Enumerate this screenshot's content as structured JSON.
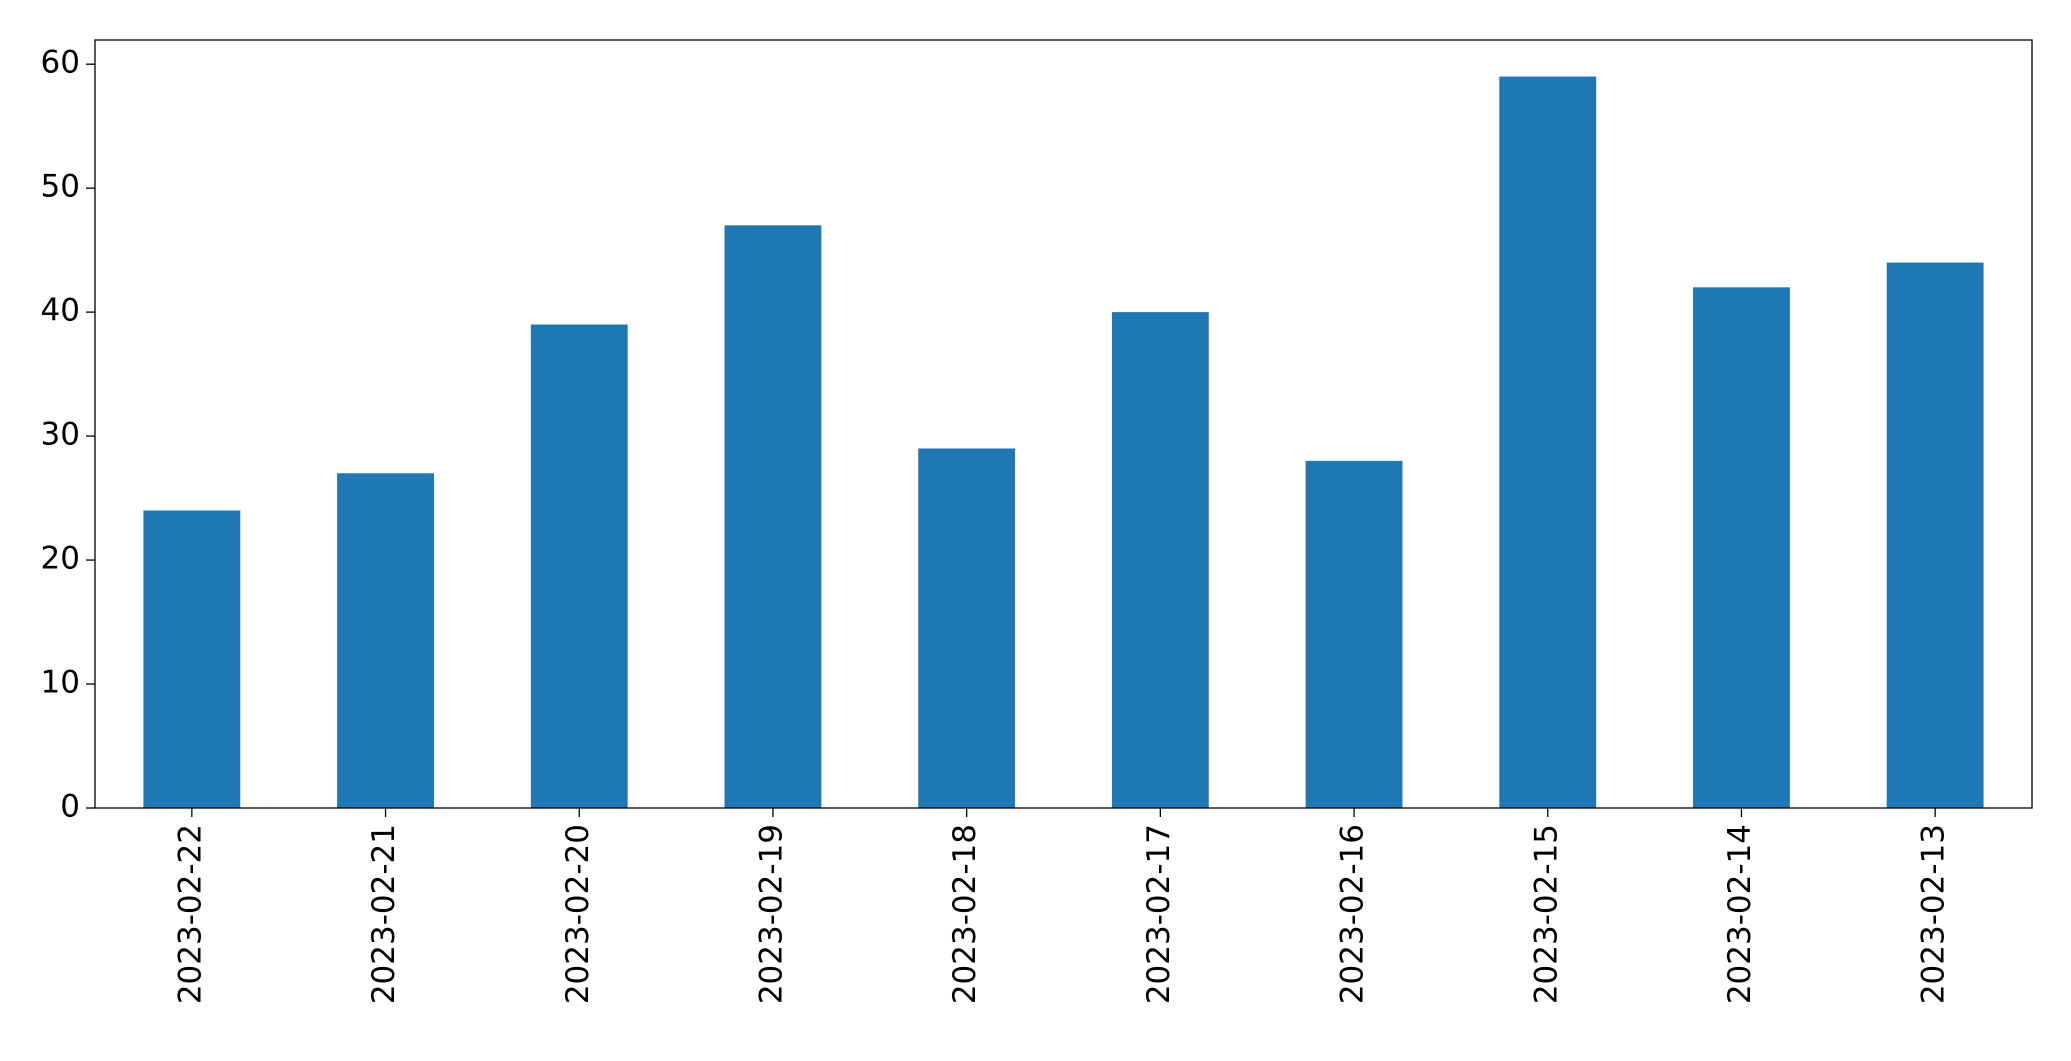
{
  "chart_data": {
    "type": "bar",
    "categories": [
      "2023-02-22",
      "2023-02-21",
      "2023-02-20",
      "2023-02-19",
      "2023-02-18",
      "2023-02-17",
      "2023-02-16",
      "2023-02-15",
      "2023-02-14",
      "2023-02-13"
    ],
    "values": [
      24,
      27,
      39,
      47,
      29,
      40,
      28,
      59,
      42,
      44
    ],
    "color": "#1f77b4",
    "ylim": [
      0,
      61.95
    ],
    "yticks": [
      0,
      10,
      20,
      30,
      40,
      50,
      60
    ],
    "grid": false
  }
}
